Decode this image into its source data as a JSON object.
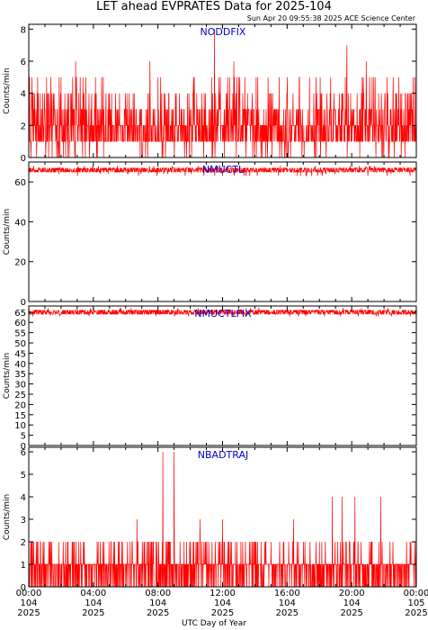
{
  "title": "LET ahead EVPRATES Data for 2025-104",
  "timestamp": "Sun Apr 20 09:55:38 2025 ACE Science Center",
  "xlabel": "UTC Day of Year",
  "x_ticks": [
    {
      "time": "00:00",
      "doy": "104",
      "year": "2025"
    },
    {
      "time": "04:00",
      "doy": "104",
      "year": "2025"
    },
    {
      "time": "08:00",
      "doy": "104",
      "year": "2025"
    },
    {
      "time": "12:00",
      "doy": "104",
      "year": "2025"
    },
    {
      "time": "16:00",
      "doy": "104",
      "year": "2025"
    },
    {
      "time": "20:00",
      "doy": "104",
      "year": "2025"
    },
    {
      "time": "00:00",
      "doy": "105",
      "year": "2025"
    }
  ],
  "colors": {
    "series": "#ff0000",
    "panel_label": "#0000cc",
    "axes": "#000000"
  },
  "chart_data": [
    {
      "type": "line",
      "series_name": "NODDFIX",
      "ylabel": "Counts/min",
      "xlim_hours": [
        0,
        24
      ],
      "ylim": [
        0,
        8.3
      ],
      "yticks": [
        0,
        2,
        4,
        6,
        8
      ],
      "grid": false,
      "sampling_minutes": 1,
      "typical_range": [
        0,
        5
      ],
      "peaks": [
        {
          "hour": 11.5,
          "value": 8
        },
        {
          "hour": 19.7,
          "value": 7
        },
        {
          "hour": 2.9,
          "value": 6
        },
        {
          "hour": 7.5,
          "value": 6
        },
        {
          "hour": 12.7,
          "value": 6
        },
        {
          "hour": 20.9,
          "value": 6
        }
      ]
    },
    {
      "type": "line",
      "series_name": "NMUCTL",
      "ylabel": "Counts/min",
      "xlim_hours": [
        0,
        24
      ],
      "ylim": [
        0,
        70
      ],
      "yticks": [
        0,
        20,
        40,
        60
      ],
      "grid": false,
      "sampling_minutes": 1,
      "typical_range": [
        63,
        68
      ],
      "mean": 66
    },
    {
      "type": "line",
      "series_name": "NMUCTLFIX",
      "ylabel": "Counts/min",
      "xlim_hours": [
        0,
        24
      ],
      "ylim": [
        0,
        68
      ],
      "yticks": [
        0,
        5,
        10,
        15,
        20,
        25,
        30,
        35,
        40,
        45,
        50,
        55,
        60,
        65
      ],
      "grid": false,
      "sampling_minutes": 1,
      "typical_range": [
        63,
        67
      ],
      "mean": 65
    },
    {
      "type": "line",
      "series_name": "NBADTRAJ",
      "ylabel": "Counts/min",
      "xlim_hours": [
        0,
        24
      ],
      "ylim": [
        0,
        6.2
      ],
      "yticks": [
        0,
        1,
        2,
        3,
        4,
        5,
        6
      ],
      "grid": false,
      "sampling_minutes": 1,
      "typical_range": [
        0,
        2
      ],
      "peaks": [
        {
          "hour": 8.3,
          "value": 6
        },
        {
          "hour": 9.0,
          "value": 6
        },
        {
          "hour": 18.8,
          "value": 4
        },
        {
          "hour": 19.4,
          "value": 4
        },
        {
          "hour": 20.2,
          "value": 4
        },
        {
          "hour": 21.8,
          "value": 4
        },
        {
          "hour": 6.7,
          "value": 3
        },
        {
          "hour": 10.6,
          "value": 3
        },
        {
          "hour": 12.0,
          "value": 3
        },
        {
          "hour": 16.4,
          "value": 3
        }
      ]
    }
  ]
}
